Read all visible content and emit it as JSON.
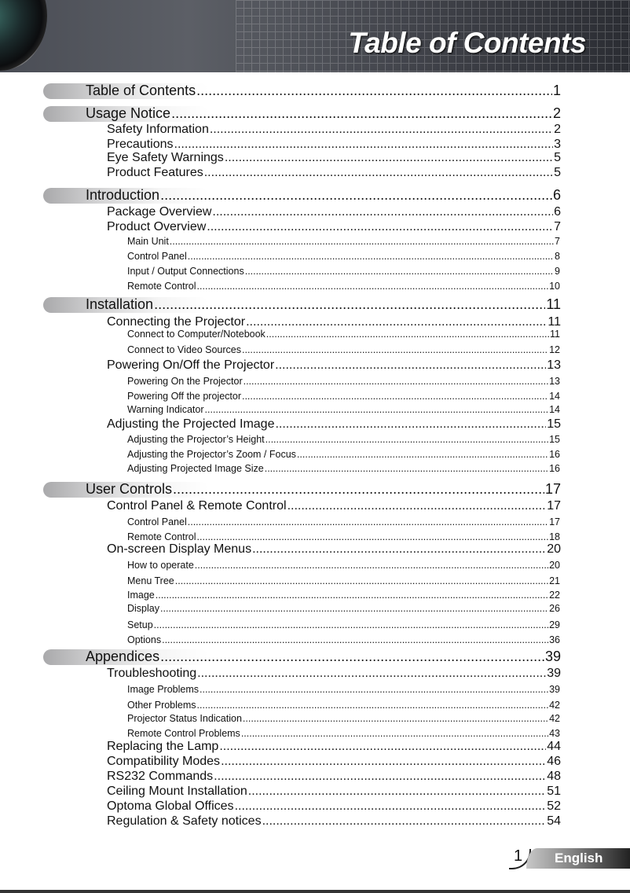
{
  "header": {
    "title": "Table of Contents"
  },
  "footer": {
    "page_number": "1",
    "language": "English"
  },
  "toc": [
    {
      "level": 1,
      "title": "Table of Contents",
      "page": "1"
    },
    {
      "level": 1,
      "title": "Usage Notice",
      "page": "2"
    },
    {
      "level": 2,
      "title": "Safety Information",
      "page": "2"
    },
    {
      "level": 2,
      "title": "Precautions",
      "page": "3"
    },
    {
      "level": 2,
      "title": "Eye Safety Warnings",
      "page": "5"
    },
    {
      "level": 2,
      "title": "Product Features",
      "page": "5"
    },
    {
      "level": 1,
      "title": "Introduction",
      "page": "6"
    },
    {
      "level": 2,
      "title": "Package Overview",
      "page": "6"
    },
    {
      "level": 2,
      "title": "Product Overview",
      "page": "7"
    },
    {
      "level": 3,
      "title": "Main Unit",
      "page": "7"
    },
    {
      "level": 3,
      "title": "Control Panel",
      "page": "8"
    },
    {
      "level": 3,
      "title": "Input / Output Connections",
      "page": "9"
    },
    {
      "level": 3,
      "title": "Remote Control",
      "page": "10"
    },
    {
      "level": 1,
      "title": "Installation",
      "page": "11"
    },
    {
      "level": 2,
      "title": "Connecting the Projector",
      "page": "11"
    },
    {
      "level": 3,
      "title": "Connect to Computer/Notebook",
      "page": "11"
    },
    {
      "level": 3,
      "title": "Connect to Video Sources",
      "page": "12"
    },
    {
      "level": 2,
      "title": "Powering On/Off the Projector",
      "page": "13"
    },
    {
      "level": 3,
      "title": "Powering On the Projector",
      "page": "13"
    },
    {
      "level": 3,
      "title": "Powering Off the projector",
      "page": "14"
    },
    {
      "level": 3,
      "title": "Warning Indicator",
      "page": "14"
    },
    {
      "level": 2,
      "title": "Adjusting the Projected Image",
      "page": "15"
    },
    {
      "level": 3,
      "title": "Adjusting the Projector’s Height",
      "page": "15"
    },
    {
      "level": 3,
      "title": "Adjusting the Projector’s Zoom / Focus",
      "page": "16"
    },
    {
      "level": 3,
      "title": "Adjusting Projected Image Size",
      "page": "16"
    },
    {
      "level": 1,
      "title": "User Controls",
      "page": "17"
    },
    {
      "level": 2,
      "title": "Control Panel & Remote Control",
      "page": "17"
    },
    {
      "level": 3,
      "title": "Control Panel",
      "page": "17"
    },
    {
      "level": 3,
      "title": "Remote Control",
      "page": "18"
    },
    {
      "level": 2,
      "title": "On-screen Display Menus",
      "page": "20"
    },
    {
      "level": 3,
      "title": "How to operate",
      "page": "20"
    },
    {
      "level": 3,
      "title": "Menu Tree",
      "page": "21"
    },
    {
      "level": 3,
      "title": "Image",
      "page": "22"
    },
    {
      "level": 3,
      "title": "Display",
      "page": "26"
    },
    {
      "level": 3,
      "title": "Setup",
      "page": "29"
    },
    {
      "level": 3,
      "title": "Options",
      "page": "36"
    },
    {
      "level": 1,
      "title": "Appendices",
      "page": "39"
    },
    {
      "level": 2,
      "title": "Troubleshooting",
      "page": "39"
    },
    {
      "level": 3,
      "title": "Image Problems",
      "page": "39"
    },
    {
      "level": 3,
      "title": "Other Problems",
      "page": "42"
    },
    {
      "level": 3,
      "title": "Projector Status Indication",
      "page": "42"
    },
    {
      "level": 3,
      "title": "Remote Control Problems",
      "page": "43"
    },
    {
      "level": 2,
      "title": "Replacing the Lamp",
      "page": "44"
    },
    {
      "level": 2,
      "title": "Compatibility Modes",
      "page": "46"
    },
    {
      "level": 2,
      "title": "RS232 Commands",
      "page": "48"
    },
    {
      "level": 2,
      "title": "Ceiling Mount Installation",
      "page": "51"
    },
    {
      "level": 2,
      "title": "Optoma Global Offices",
      "page": "52"
    },
    {
      "level": 2,
      "title": "Regulation & Safety notices",
      "page": "54"
    }
  ]
}
